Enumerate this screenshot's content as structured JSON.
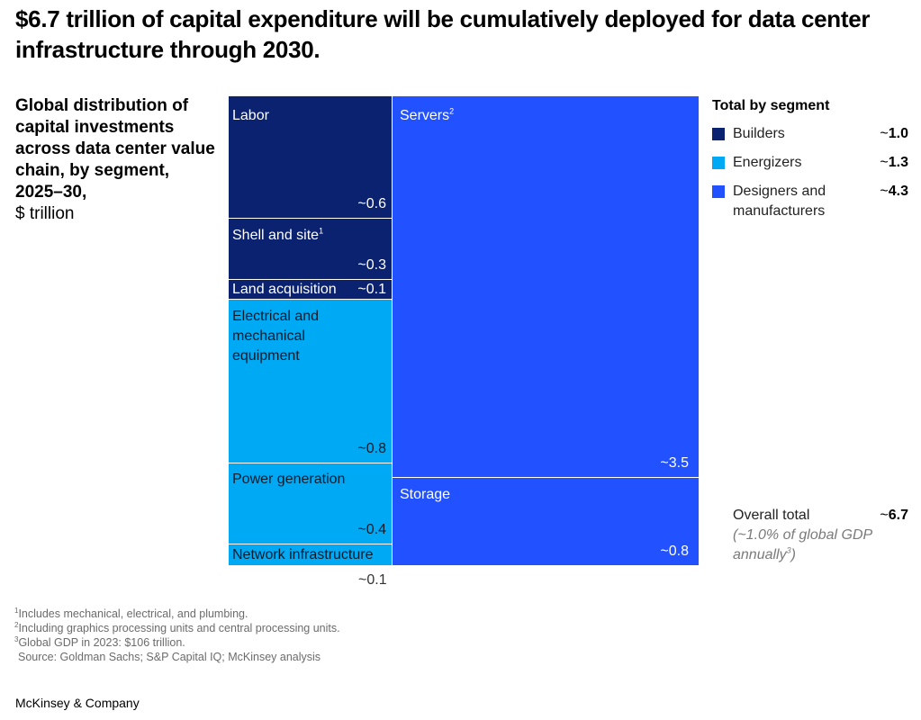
{
  "title": "$6.7 trillion of capital expenditure will be cumulatively deployed for data center infrastructure through 2030.",
  "subtitle": "Global distribution of capital investments across data center value chain, by segment, 2025–30,",
  "unit": "$ trillion",
  "colors": {
    "builders": "#0a2270",
    "energizers": "#00a9f4",
    "designers": "#2251ff"
  },
  "chart_data": {
    "type": "treemap",
    "cells": [
      {
        "label": "Labor",
        "sup": "",
        "value": "~0.6",
        "segment": "Builders"
      },
      {
        "label": "Shell and site",
        "sup": "1",
        "value": "~0.3",
        "segment": "Builders"
      },
      {
        "label": "Land acquisition",
        "sup": "",
        "value": "~0.1",
        "segment": "Builders"
      },
      {
        "label": "Electrical and\nmechanical\nequipment",
        "sup": "",
        "value": "~0.8",
        "segment": "Energizers"
      },
      {
        "label": "Power generation",
        "sup": "",
        "value": "~0.4",
        "segment": "Energizers"
      },
      {
        "label": "Network infrastructure",
        "sup": "",
        "value": "~0.1",
        "segment": "Energizers"
      },
      {
        "label": "Servers",
        "sup": "2",
        "value": "~3.5",
        "segment": "Designers and manufacturers"
      },
      {
        "label": "Storage",
        "sup": "",
        "value": "~0.8",
        "segment": "Designers and manufacturers"
      }
    ],
    "legend": {
      "title": "Total by segment",
      "items": [
        {
          "name": "Builders",
          "value": "1.0"
        },
        {
          "name": "Energizers",
          "value": "1.3"
        },
        {
          "name": "Designers and manufacturers",
          "value": "4.3"
        }
      ]
    },
    "overall": {
      "label": "Overall total",
      "value": "6.7",
      "note": "(~1.0% of global GDP annually",
      "note_sup": "3",
      "note_end": ")"
    }
  },
  "footnotes": [
    {
      "sup": "1",
      "text": "Includes mechanical, electrical, and plumbing."
    },
    {
      "sup": "2",
      "text": "Including graphics processing units and central processing units."
    },
    {
      "sup": "3",
      "text": "Global GDP in 2023: $106 trillion."
    }
  ],
  "source": "Source: Goldman Sachs; S&P Capital IQ; McKinsey analysis",
  "brand": "McKinsey & Company"
}
